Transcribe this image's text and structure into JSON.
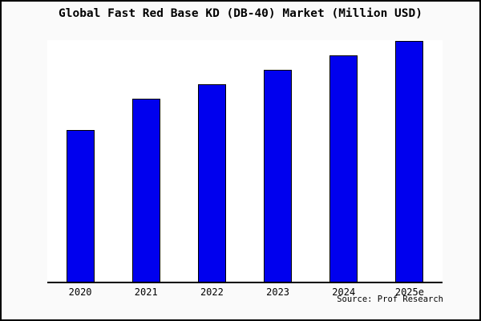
{
  "title": "Global Fast Red Base KD (DB-40) Market (Million USD)",
  "source": {
    "label": "Source: Prof Research"
  },
  "colors": {
    "bar_fill": "#0000EE",
    "bar_border": "#000000",
    "page_background": "#FAFAFA",
    "plot_background": "#FFFFFF",
    "axis": "#000000",
    "text": "#000000"
  },
  "chart_data": {
    "type": "bar",
    "title": "Global Fast Red Base KD (DB-40) Market (Million USD)",
    "categories": [
      "2020",
      "2021",
      "2022",
      "2023",
      "2024",
      "2025e"
    ],
    "values": [
      63,
      76,
      82,
      88,
      94,
      100
    ],
    "xlabel": "",
    "ylabel": "",
    "ylim": [
      0,
      100
    ],
    "y_axis_labels_visible": false,
    "grid": false,
    "legend": false,
    "annotation": "Source: Prof Research"
  }
}
